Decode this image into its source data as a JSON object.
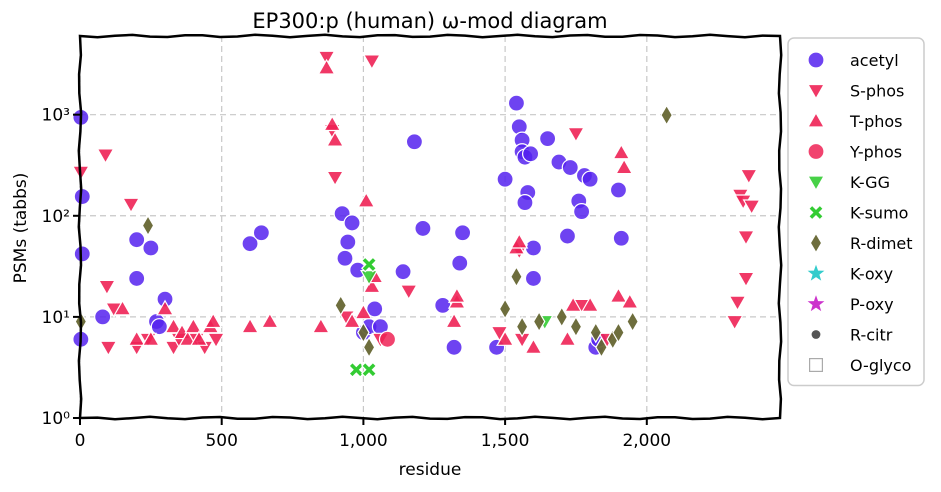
{
  "chart_data": {
    "type": "scatter",
    "title": "EP300:p (human) ω-mod diagram",
    "xlabel": "residue",
    "ylabel": "PSMs (tabbs)",
    "xlim": [
      0,
      2470
    ],
    "ylim": [
      1,
      6000
    ],
    "yscale": "log",
    "grid": true,
    "legend_position": "outside-right",
    "x_ticks": [
      {
        "value": 0,
        "label": "0"
      },
      {
        "value": 500,
        "label": "500"
      },
      {
        "value": 1000,
        "label": "1,000"
      },
      {
        "value": 1500,
        "label": "1,500"
      },
      {
        "value": 2000,
        "label": "2,000"
      }
    ],
    "y_ticks": [
      {
        "value": 1,
        "label": "10⁰"
      },
      {
        "value": 10,
        "label": "10¹"
      },
      {
        "value": 100,
        "label": "10²"
      },
      {
        "value": 1000,
        "label": "10³"
      }
    ],
    "series": [
      {
        "name": "acetyl",
        "color": "#5522ee",
        "marker": "circle",
        "points": [
          [
            3,
            940
          ],
          [
            3,
            6
          ],
          [
            8,
            155
          ],
          [
            8,
            42
          ],
          [
            80,
            10
          ],
          [
            200,
            24
          ],
          [
            200,
            58
          ],
          [
            250,
            48
          ],
          [
            270,
            9
          ],
          [
            280,
            8
          ],
          [
            300,
            15
          ],
          [
            600,
            53
          ],
          [
            640,
            68
          ],
          [
            925,
            105
          ],
          [
            935,
            38
          ],
          [
            945,
            55
          ],
          [
            960,
            85
          ],
          [
            980,
            29
          ],
          [
            1000,
            7
          ],
          [
            1020,
            8
          ],
          [
            1040,
            12
          ],
          [
            1060,
            8
          ],
          [
            1140,
            28
          ],
          [
            1180,
            540
          ],
          [
            1210,
            75
          ],
          [
            1280,
            13
          ],
          [
            1320,
            5
          ],
          [
            1340,
            34
          ],
          [
            1350,
            68
          ],
          [
            1470,
            5
          ],
          [
            1500,
            230
          ],
          [
            1540,
            1300
          ],
          [
            1550,
            760
          ],
          [
            1560,
            560
          ],
          [
            1560,
            430
          ],
          [
            1570,
            380
          ],
          [
            1580,
            170
          ],
          [
            1570,
            135
          ],
          [
            1590,
            410
          ],
          [
            1600,
            24
          ],
          [
            1600,
            48
          ],
          [
            1650,
            580
          ],
          [
            1690,
            340
          ],
          [
            1720,
            63
          ],
          [
            1730,
            300
          ],
          [
            1760,
            140
          ],
          [
            1770,
            110
          ],
          [
            1780,
            250
          ],
          [
            1800,
            230
          ],
          [
            1820,
            5
          ],
          [
            1830,
            6
          ],
          [
            1900,
            180
          ],
          [
            1910,
            60
          ]
        ]
      },
      {
        "name": "S-phos",
        "color": "#ee2255",
        "marker": "tri-down",
        "points": [
          [
            3,
            270
          ],
          [
            90,
            400
          ],
          [
            95,
            20
          ],
          [
            100,
            5
          ],
          [
            120,
            12
          ],
          [
            180,
            130
          ],
          [
            200,
            5
          ],
          [
            240,
            6
          ],
          [
            330,
            5
          ],
          [
            350,
            6
          ],
          [
            410,
            6
          ],
          [
            440,
            5
          ],
          [
            480,
            6
          ],
          [
            870,
            3700
          ],
          [
            890,
            700
          ],
          [
            900,
            240
          ],
          [
            940,
            10
          ],
          [
            1030,
            3400
          ],
          [
            1060,
            6
          ],
          [
            1160,
            18
          ],
          [
            1480,
            7
          ],
          [
            1550,
            45
          ],
          [
            1560,
            6
          ],
          [
            1750,
            650
          ],
          [
            1770,
            13
          ],
          [
            1860,
            6
          ],
          [
            2310,
            9
          ],
          [
            2320,
            14
          ],
          [
            2330,
            160
          ],
          [
            2340,
            140
          ],
          [
            2350,
            62
          ],
          [
            2350,
            24
          ],
          [
            2360,
            250
          ],
          [
            2370,
            125
          ]
        ]
      },
      {
        "name": "T-phos",
        "color": "#ee2255",
        "marker": "tri-up",
        "points": [
          [
            150,
            12
          ],
          [
            200,
            6
          ],
          [
            250,
            6
          ],
          [
            300,
            12
          ],
          [
            330,
            8
          ],
          [
            360,
            7
          ],
          [
            380,
            6
          ],
          [
            400,
            8
          ],
          [
            420,
            6
          ],
          [
            460,
            8
          ],
          [
            470,
            9
          ],
          [
            600,
            8
          ],
          [
            670,
            9
          ],
          [
            850,
            8
          ],
          [
            870,
            2900
          ],
          [
            890,
            800
          ],
          [
            900,
            560
          ],
          [
            960,
            9
          ],
          [
            1000,
            11
          ],
          [
            1010,
            140
          ],
          [
            1030,
            20
          ],
          [
            1040,
            25
          ],
          [
            1320,
            9
          ],
          [
            1330,
            14
          ],
          [
            1330,
            16
          ],
          [
            1500,
            6
          ],
          [
            1540,
            48
          ],
          [
            1550,
            55
          ],
          [
            1600,
            5
          ],
          [
            1720,
            6
          ],
          [
            1740,
            13
          ],
          [
            1800,
            13
          ],
          [
            1900,
            16
          ],
          [
            1910,
            420
          ],
          [
            1920,
            300
          ],
          [
            1940,
            14
          ]
        ]
      },
      {
        "name": "Y-phos",
        "color": "#ee2255",
        "marker": "circle",
        "points": [
          [
            1085,
            6
          ]
        ]
      },
      {
        "name": "K-GG",
        "color": "#33cc33",
        "marker": "tri-down",
        "points": [
          [
            1020,
            25
          ],
          [
            1640,
            9
          ]
        ]
      },
      {
        "name": "K-sumo",
        "color": "#33cc33",
        "marker": "x-fill",
        "points": [
          [
            975,
            3
          ],
          [
            1020,
            3
          ],
          [
            1020,
            33
          ]
        ]
      },
      {
        "name": "R-dimet",
        "color": "#666633",
        "marker": "diamond",
        "points": [
          [
            3,
            9
          ],
          [
            240,
            80
          ],
          [
            920,
            13
          ],
          [
            1000,
            7
          ],
          [
            1020,
            5
          ],
          [
            1500,
            12
          ],
          [
            1540,
            25
          ],
          [
            1560,
            8
          ],
          [
            1620,
            9
          ],
          [
            1700,
            10
          ],
          [
            1750,
            8
          ],
          [
            1820,
            7
          ],
          [
            1840,
            5
          ],
          [
            1880,
            6
          ],
          [
            1900,
            7
          ],
          [
            1950,
            9
          ],
          [
            2070,
            990
          ]
        ]
      },
      {
        "name": "K-oxy",
        "color": "#33cccc",
        "marker": "star",
        "points": []
      },
      {
        "name": "P-oxy",
        "color": "#cc33cc",
        "marker": "star",
        "points": []
      },
      {
        "name": "R-citr",
        "color": "#555555",
        "marker": "small-circle",
        "points": []
      },
      {
        "name": "O-glyco",
        "color": "#ffffff",
        "marker": "square-open",
        "points": []
      }
    ]
  }
}
